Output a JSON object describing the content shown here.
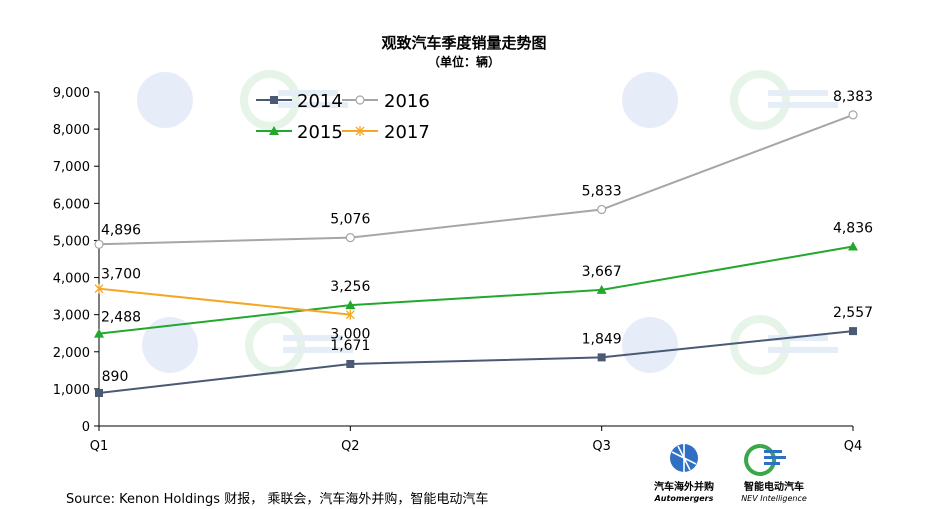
{
  "chart_data": {
    "type": "line",
    "title": "观致汽车季度销量走势图",
    "subtitle": "（单位：辆）",
    "categories": [
      "Q1",
      "Q2",
      "Q3",
      "Q4"
    ],
    "ylim": [
      0,
      9000
    ],
    "yticks": [
      "0",
      "1,000",
      "2,000",
      "3,000",
      "4,000",
      "5,000",
      "6,000",
      "7,000",
      "8,000",
      "9,000"
    ],
    "grid": false,
    "legend_position": "top-left",
    "series": [
      {
        "name": "2014",
        "values": [
          890,
          1671,
          1849,
          2557
        ],
        "labels": [
          "890",
          "1,671",
          "1,849",
          "2,557"
        ],
        "color": "#4a5a75",
        "marker": "square"
      },
      {
        "name": "2016",
        "values": [
          4896,
          5076,
          5833,
          8383
        ],
        "labels": [
          "4,896",
          "5,076",
          "5,833",
          "8,383"
        ],
        "color": "#a6a6a6",
        "marker": "circle"
      },
      {
        "name": "2015",
        "values": [
          2488,
          3256,
          3667,
          4836
        ],
        "labels": [
          "2,488",
          "3,256",
          "3,667",
          "4,836"
        ],
        "color": "#22a82c",
        "marker": "triangle"
      },
      {
        "name": "2017",
        "values": [
          3700,
          3000,
          null,
          null
        ],
        "labels": [
          "3,700",
          "3,000",
          null,
          null
        ],
        "color": "#f5a623",
        "marker": "star"
      }
    ]
  },
  "source": "Source: Kenon Holdings 财报， 乘联会，汽车海外并购，智能电动汽车",
  "logos": {
    "automergers_cn": "汽车海外并购",
    "automergers_en": "Automergers",
    "nev_cn": "智能电动汽车",
    "nev_en": "NEV Intelligence"
  },
  "colors": {
    "axis": "#000000",
    "logo_blue": "#2f6fc4",
    "logo_green": "#3aa84a"
  }
}
